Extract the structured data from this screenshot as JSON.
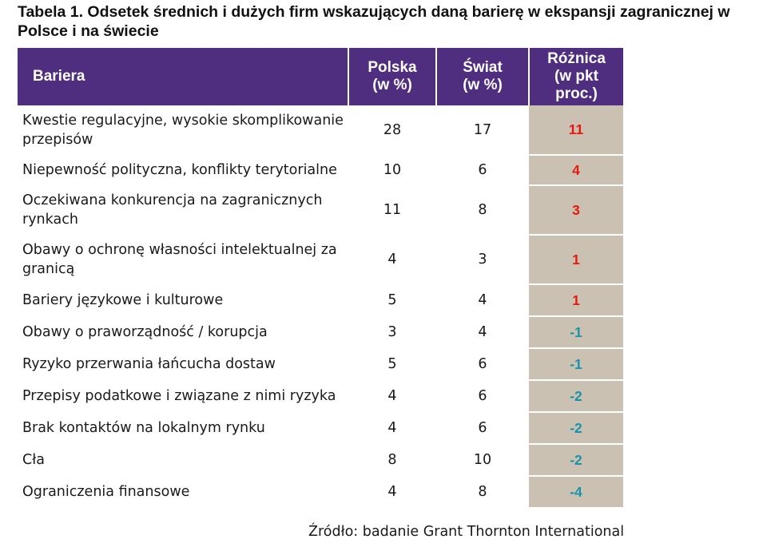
{
  "title": "Tabela 1. Odsetek średnich i dużych firm wskazujących daną barierę w ekspansji zagranicznej w Polsce i na świecie",
  "header": {
    "barrier": "Bariera",
    "poland": "Polska (w %)",
    "world": "Świat (w %)",
    "difference": "Różnica (w pkt proc.)"
  },
  "rows": [
    {
      "barrier": "Kwestie regulacyjne, wysokie skomplikowanie przepisów",
      "poland": "28",
      "world": "17",
      "difference": "11"
    },
    {
      "barrier": "Niepewność polityczna, konflikty terytorialne",
      "poland": "10",
      "world": "6",
      "difference": "4"
    },
    {
      "barrier": "Oczekiwana konkurencja na zagranicznych rynkach",
      "poland": "11",
      "world": "8",
      "difference": "3"
    },
    {
      "barrier": "Obawy o ochronę własności intelektualnej za granicą",
      "poland": "4",
      "world": "3",
      "difference": "1"
    },
    {
      "barrier": "Bariery językowe i kulturowe",
      "poland": "5",
      "world": "4",
      "difference": "1"
    },
    {
      "barrier": "Obawy o praworządność / korupcja",
      "poland": "3",
      "world": "4",
      "difference": "-1"
    },
    {
      "barrier": "Ryzyko przerwania łańcucha dostaw",
      "poland": "5",
      "world": "6",
      "difference": "-1"
    },
    {
      "barrier": "Przepisy podatkowe i związane z nimi ryzyka",
      "poland": "4",
      "world": "6",
      "difference": "-2"
    },
    {
      "barrier": "Brak kontaktów na lokalnym rynku",
      "poland": "4",
      "world": "6",
      "difference": "-2"
    },
    {
      "barrier": "Cła",
      "poland": "8",
      "world": "10",
      "difference": "-2"
    },
    {
      "barrier": "Ograniczenia finansowe",
      "poland": "4",
      "world": "8",
      "difference": "-4"
    }
  ],
  "source": "Źródło: badanie Grant Thornton International",
  "colors": {
    "header_bg": "#4f2d7f",
    "difference_bg": "#cbc1b3",
    "positive": "#e8180c",
    "negative": "#1a93a8"
  }
}
